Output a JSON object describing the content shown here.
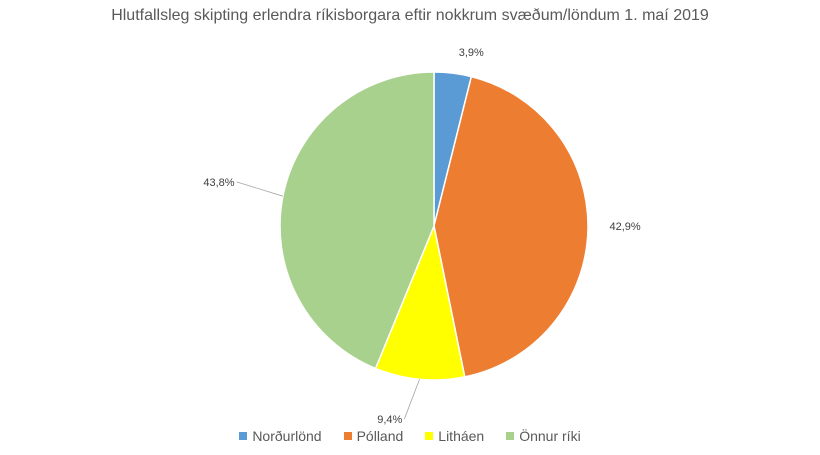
{
  "chart_data": {
    "type": "pie",
    "title": "Hlutfallsleg skipting erlendra ríkisborgara eftir nokkrum svæðum/löndum 1. maí 2019",
    "categories": [
      "Norðurlönd",
      "Pólland",
      "Litháen",
      "Önnur ríki"
    ],
    "values": [
      3.9,
      42.9,
      9.4,
      43.8
    ],
    "labels": [
      "3,9%",
      "42,9%",
      "9,4%",
      "43,8%"
    ],
    "colors": [
      "#5b9bd5",
      "#ed7d31",
      "#ffff00",
      "#a9d18e"
    ],
    "legend_position": "bottom"
  }
}
